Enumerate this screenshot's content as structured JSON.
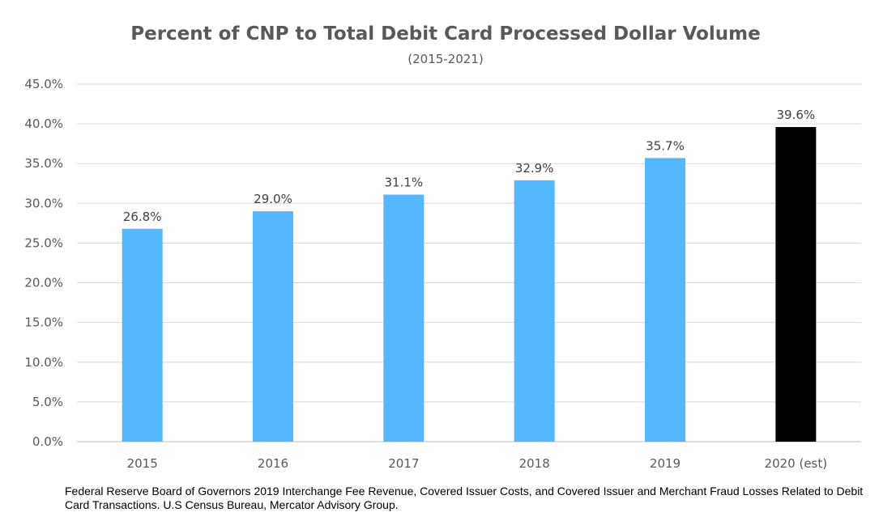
{
  "chart_data": {
    "type": "bar",
    "title": "Percent of CNP to Total Debit Card Processed Dollar Volume",
    "subtitle": "(2015-2021)",
    "categories": [
      "2015",
      "2016",
      "2017",
      "2018",
      "2019",
      "2020 (est)"
    ],
    "values": [
      26.8,
      29.0,
      31.1,
      32.9,
      35.7,
      39.6
    ],
    "data_labels": [
      "26.8%",
      "29.0%",
      "31.1%",
      "32.9%",
      "35.7%",
      "39.6%"
    ],
    "bar_colors": [
      "#55b8ff",
      "#55b8ff",
      "#55b8ff",
      "#55b8ff",
      "#55b8ff",
      "#000000"
    ],
    "ylim": [
      0,
      45
    ],
    "yticks": [
      "0.0%",
      "5.0%",
      "10.0%",
      "15.0%",
      "20.0%",
      "25.0%",
      "30.0%",
      "35.0%",
      "40.0%",
      "45.0%"
    ],
    "ytick_values": [
      0,
      5,
      10,
      15,
      20,
      25,
      30,
      35,
      40,
      45
    ],
    "grid": true,
    "xlabel": "",
    "ylabel": ""
  },
  "source_text": "Federal Reserve Board of Governors 2019 Interchange Fee Revenue, Covered Issuer Costs, and Covered Issuer and Merchant Fraud Losses Related to Debit Card Transactions.  U.S Census Bureau, Mercator Advisory Group.",
  "colors": {
    "gridline": "#d9d9d9",
    "axis": "#bfbfbf"
  }
}
